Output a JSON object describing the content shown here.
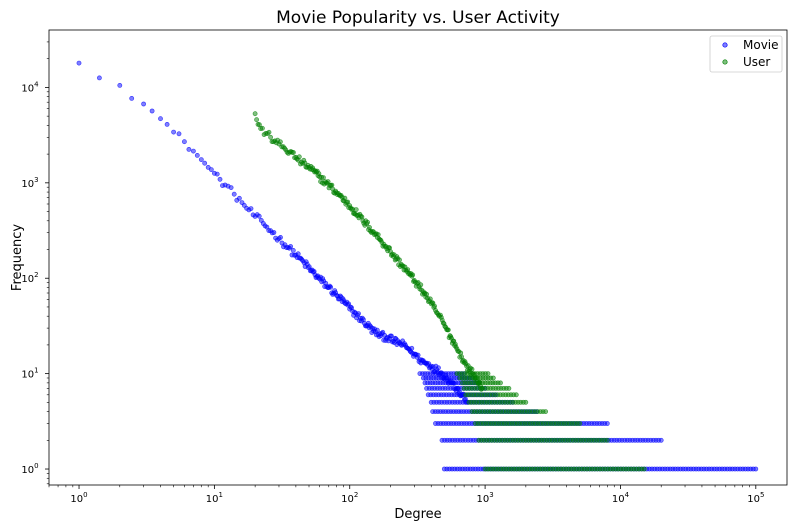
{
  "chart_data": {
    "type": "scatter",
    "title": "Movie Popularity vs. User Activity",
    "xlabel": "Degree",
    "ylabel": "Frequency",
    "xscale": "log",
    "yscale": "log",
    "xlim": [
      0.6,
      170000
    ],
    "ylim": [
      0.68,
      40000
    ],
    "grid": false,
    "legend_position": "top-right",
    "x_ticks": [
      {
        "value": 1,
        "base": "10",
        "exp": "0"
      },
      {
        "value": 10,
        "base": "10",
        "exp": "1"
      },
      {
        "value": 100,
        "base": "10",
        "exp": "2"
      },
      {
        "value": 1000,
        "base": "10",
        "exp": "3"
      },
      {
        "value": 10000,
        "base": "10",
        "exp": "4"
      },
      {
        "value": 100000,
        "base": "10",
        "exp": "5"
      }
    ],
    "y_ticks": [
      {
        "value": 1,
        "base": "10",
        "exp": "0"
      },
      {
        "value": 10,
        "base": "10",
        "exp": "1"
      },
      {
        "value": 100,
        "base": "10",
        "exp": "2"
      },
      {
        "value": 1000,
        "base": "10",
        "exp": "3"
      },
      {
        "value": 10000,
        "base": "10",
        "exp": "4"
      }
    ],
    "series": [
      {
        "name": "Movie",
        "color": "#0000ff",
        "points": [
          [
            1,
            18000
          ],
          [
            2,
            10500
          ],
          [
            3,
            6700
          ],
          [
            4,
            4700
          ],
          [
            5,
            3400
          ],
          [
            6,
            2700
          ],
          [
            7,
            2150
          ],
          [
            8,
            1750
          ],
          [
            9,
            1450
          ],
          [
            10,
            1260
          ],
          [
            11,
            1090
          ],
          [
            12,
            950
          ],
          [
            14,
            760
          ],
          [
            16,
            620
          ],
          [
            18,
            520
          ],
          [
            20,
            445
          ],
          [
            23,
            375
          ],
          [
            26,
            315
          ],
          [
            30,
            260
          ],
          [
            35,
            210
          ],
          [
            40,
            175
          ],
          [
            46,
            145
          ],
          [
            52,
            120
          ],
          [
            60,
            98
          ],
          [
            70,
            80
          ],
          [
            80,
            66
          ],
          [
            92,
            55
          ],
          [
            105,
            45
          ],
          [
            120,
            38
          ],
          [
            135,
            32
          ],
          [
            150,
            28
          ],
          [
            170,
            25
          ],
          [
            190,
            24
          ],
          [
            210,
            22
          ],
          [
            230,
            21
          ],
          [
            250,
            20
          ],
          [
            275,
            18
          ],
          [
            300,
            16
          ],
          [
            330,
            14
          ],
          [
            360,
            13
          ],
          [
            400,
            12
          ],
          [
            440,
            11
          ],
          [
            480,
            10
          ],
          [
            520,
            9
          ],
          [
            570,
            8
          ],
          [
            620,
            7
          ],
          [
            680,
            6
          ],
          [
            740,
            5
          ]
        ],
        "bands": [
          {
            "y": 1,
            "x_from": 500,
            "x_to": 100000
          },
          {
            "y": 2,
            "x_from": 480,
            "x_to": 20000
          },
          {
            "y": 3,
            "x_from": 430,
            "x_to": 8000
          },
          {
            "y": 4,
            "x_from": 410,
            "x_to": 2400
          },
          {
            "y": 5,
            "x_from": 400,
            "x_to": 1600
          },
          {
            "y": 6,
            "x_from": 380,
            "x_to": 1200
          },
          {
            "y": 7,
            "x_from": 370,
            "x_to": 1000
          },
          {
            "y": 8,
            "x_from": 360,
            "x_to": 900
          },
          {
            "y": 9,
            "x_from": 350,
            "x_to": 800
          },
          {
            "y": 10,
            "x_from": 330,
            "x_to": 700
          }
        ]
      },
      {
        "name": "User",
        "color": "#008000",
        "points": [
          [
            20,
            5300
          ],
          [
            21,
            4100
          ],
          [
            22,
            3700
          ],
          [
            24,
            3300
          ],
          [
            26,
            3000
          ],
          [
            28,
            2750
          ],
          [
            30,
            2550
          ],
          [
            33,
            2300
          ],
          [
            36,
            2100
          ],
          [
            40,
            1850
          ],
          [
            45,
            1600
          ],
          [
            50,
            1450
          ],
          [
            55,
            1300
          ],
          [
            60,
            1150
          ],
          [
            67,
            1000
          ],
          [
            75,
            860
          ],
          [
            85,
            730
          ],
          [
            95,
            620
          ],
          [
            105,
            530
          ],
          [
            115,
            460
          ],
          [
            125,
            400
          ],
          [
            140,
            340
          ],
          [
            155,
            290
          ],
          [
            170,
            250
          ],
          [
            185,
            215
          ],
          [
            200,
            190
          ],
          [
            220,
            160
          ],
          [
            240,
            140
          ],
          [
            260,
            122
          ],
          [
            280,
            108
          ],
          [
            300,
            95
          ],
          [
            325,
            82
          ],
          [
            350,
            72
          ],
          [
            375,
            62
          ],
          [
            400,
            54
          ],
          [
            430,
            46
          ],
          [
            460,
            40
          ],
          [
            490,
            34
          ],
          [
            520,
            29
          ],
          [
            550,
            25
          ],
          [
            580,
            22
          ],
          [
            610,
            19
          ],
          [
            640,
            17
          ],
          [
            670,
            15
          ],
          [
            700,
            13
          ],
          [
            730,
            12
          ],
          [
            770,
            11
          ],
          [
            810,
            10
          ],
          [
            850,
            9
          ],
          [
            900,
            8
          ],
          [
            950,
            7
          ]
        ],
        "bands": [
          {
            "y": 1,
            "x_from": 1000,
            "x_to": 15000
          },
          {
            "y": 2,
            "x_from": 900,
            "x_to": 8000
          },
          {
            "y": 3,
            "x_from": 850,
            "x_to": 5000
          },
          {
            "y": 4,
            "x_from": 800,
            "x_to": 2800
          },
          {
            "y": 5,
            "x_from": 760,
            "x_to": 2000
          },
          {
            "y": 6,
            "x_from": 720,
            "x_to": 1700
          },
          {
            "y": 7,
            "x_from": 700,
            "x_to": 1500
          },
          {
            "y": 8,
            "x_from": 680,
            "x_to": 1300
          },
          {
            "y": 9,
            "x_from": 650,
            "x_to": 1150
          },
          {
            "y": 10,
            "x_from": 620,
            "x_to": 1050
          }
        ]
      }
    ]
  }
}
